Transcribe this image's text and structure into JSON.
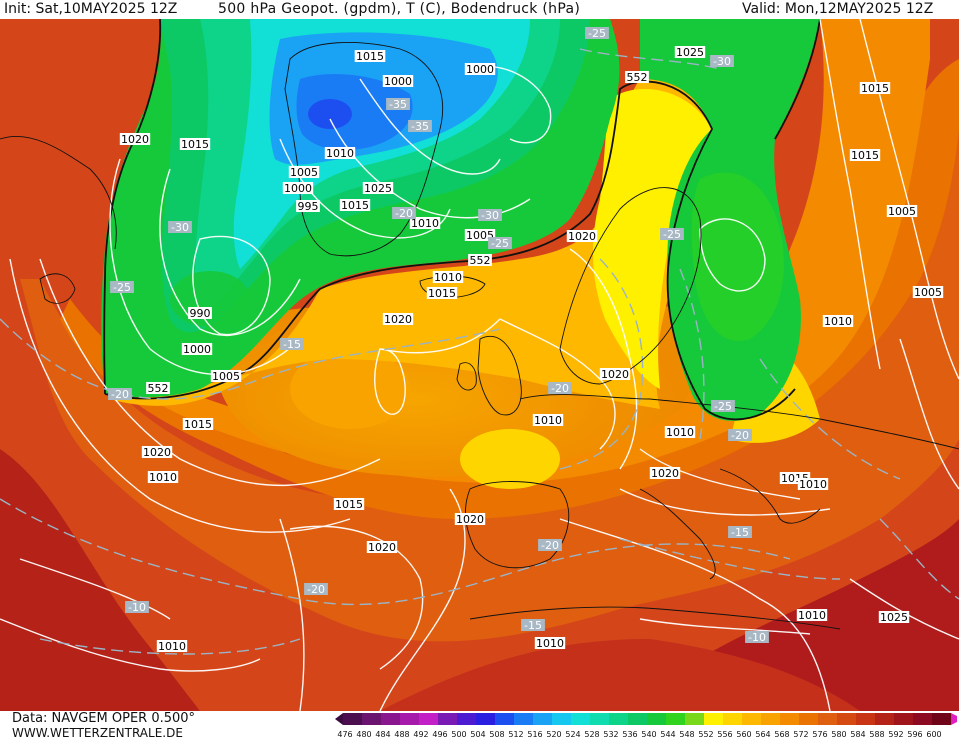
{
  "header": {
    "init_text": "Init: Sat,10MAY2025 12Z",
    "title": "500 hPa Geopot. (gpdm), T (C), Bodendruck (hPa)",
    "valid_text": "Valid: Mon,12MAY2025 12Z"
  },
  "footer": {
    "data_text": "Data: NAVGEM OPER 0.500°",
    "url_text": "WWW.WETTERZENTRALE.DE"
  },
  "scale": {
    "values": [
      "476",
      "480",
      "484",
      "488",
      "492",
      "496",
      "500",
      "504",
      "508",
      "512",
      "516",
      "520",
      "524",
      "528",
      "532",
      "536",
      "540",
      "544",
      "548",
      "552",
      "556",
      "560",
      "564",
      "568",
      "572",
      "576",
      "580",
      "584",
      "588",
      "592",
      "596",
      "600"
    ],
    "colors": [
      "#4b0f4f",
      "#6a1470",
      "#8a168f",
      "#a61aab",
      "#c21fc6",
      "#7a1ab4",
      "#4c1ad0",
      "#2a1fe0",
      "#1d4ff0",
      "#1a7cf5",
      "#1aa3f5",
      "#16c8ef",
      "#12dfd6",
      "#10dcb0",
      "#0ed48a",
      "#0cc965",
      "#16c93a",
      "#30d41e",
      "#7ad81a",
      "#fff000",
      "#ffd500",
      "#ffb800",
      "#f9a300",
      "#f38a00",
      "#ea7200",
      "#e05e10",
      "#d44a10",
      "#c83414",
      "#b52218",
      "#a0141c",
      "#8c0a22",
      "#700418"
    ]
  },
  "map": {
    "pressure_labels": [
      "1015",
      "1020",
      "1000",
      "1025",
      "1015",
      "1015",
      "1010",
      "1020",
      "1015",
      "1005",
      "1000",
      "995",
      "1015",
      "1025",
      "1000",
      "1005",
      "1010",
      "1015",
      "1020",
      "1005",
      "1010",
      "1005",
      "990",
      "1000",
      "1005",
      "1020",
      "1010",
      "1010",
      "1015",
      "1020",
      "1010",
      "1015",
      "1020",
      "1020",
      "1020",
      "1015",
      "1010",
      "1010",
      "1010",
      "1025",
      "1010",
      "1010",
      "1015"
    ],
    "temp_labels": [
      "-25",
      "-30",
      "-35",
      "-35",
      "-20",
      "-30",
      "-25",
      "-25",
      "-30",
      "-25",
      "-15",
      "-20",
      "-20",
      "-25",
      "-20",
      "-15",
      "-20",
      "-20",
      "-10",
      "-15",
      "-10"
    ],
    "geo_labels": [
      "552",
      "552",
      "552"
    ]
  }
}
